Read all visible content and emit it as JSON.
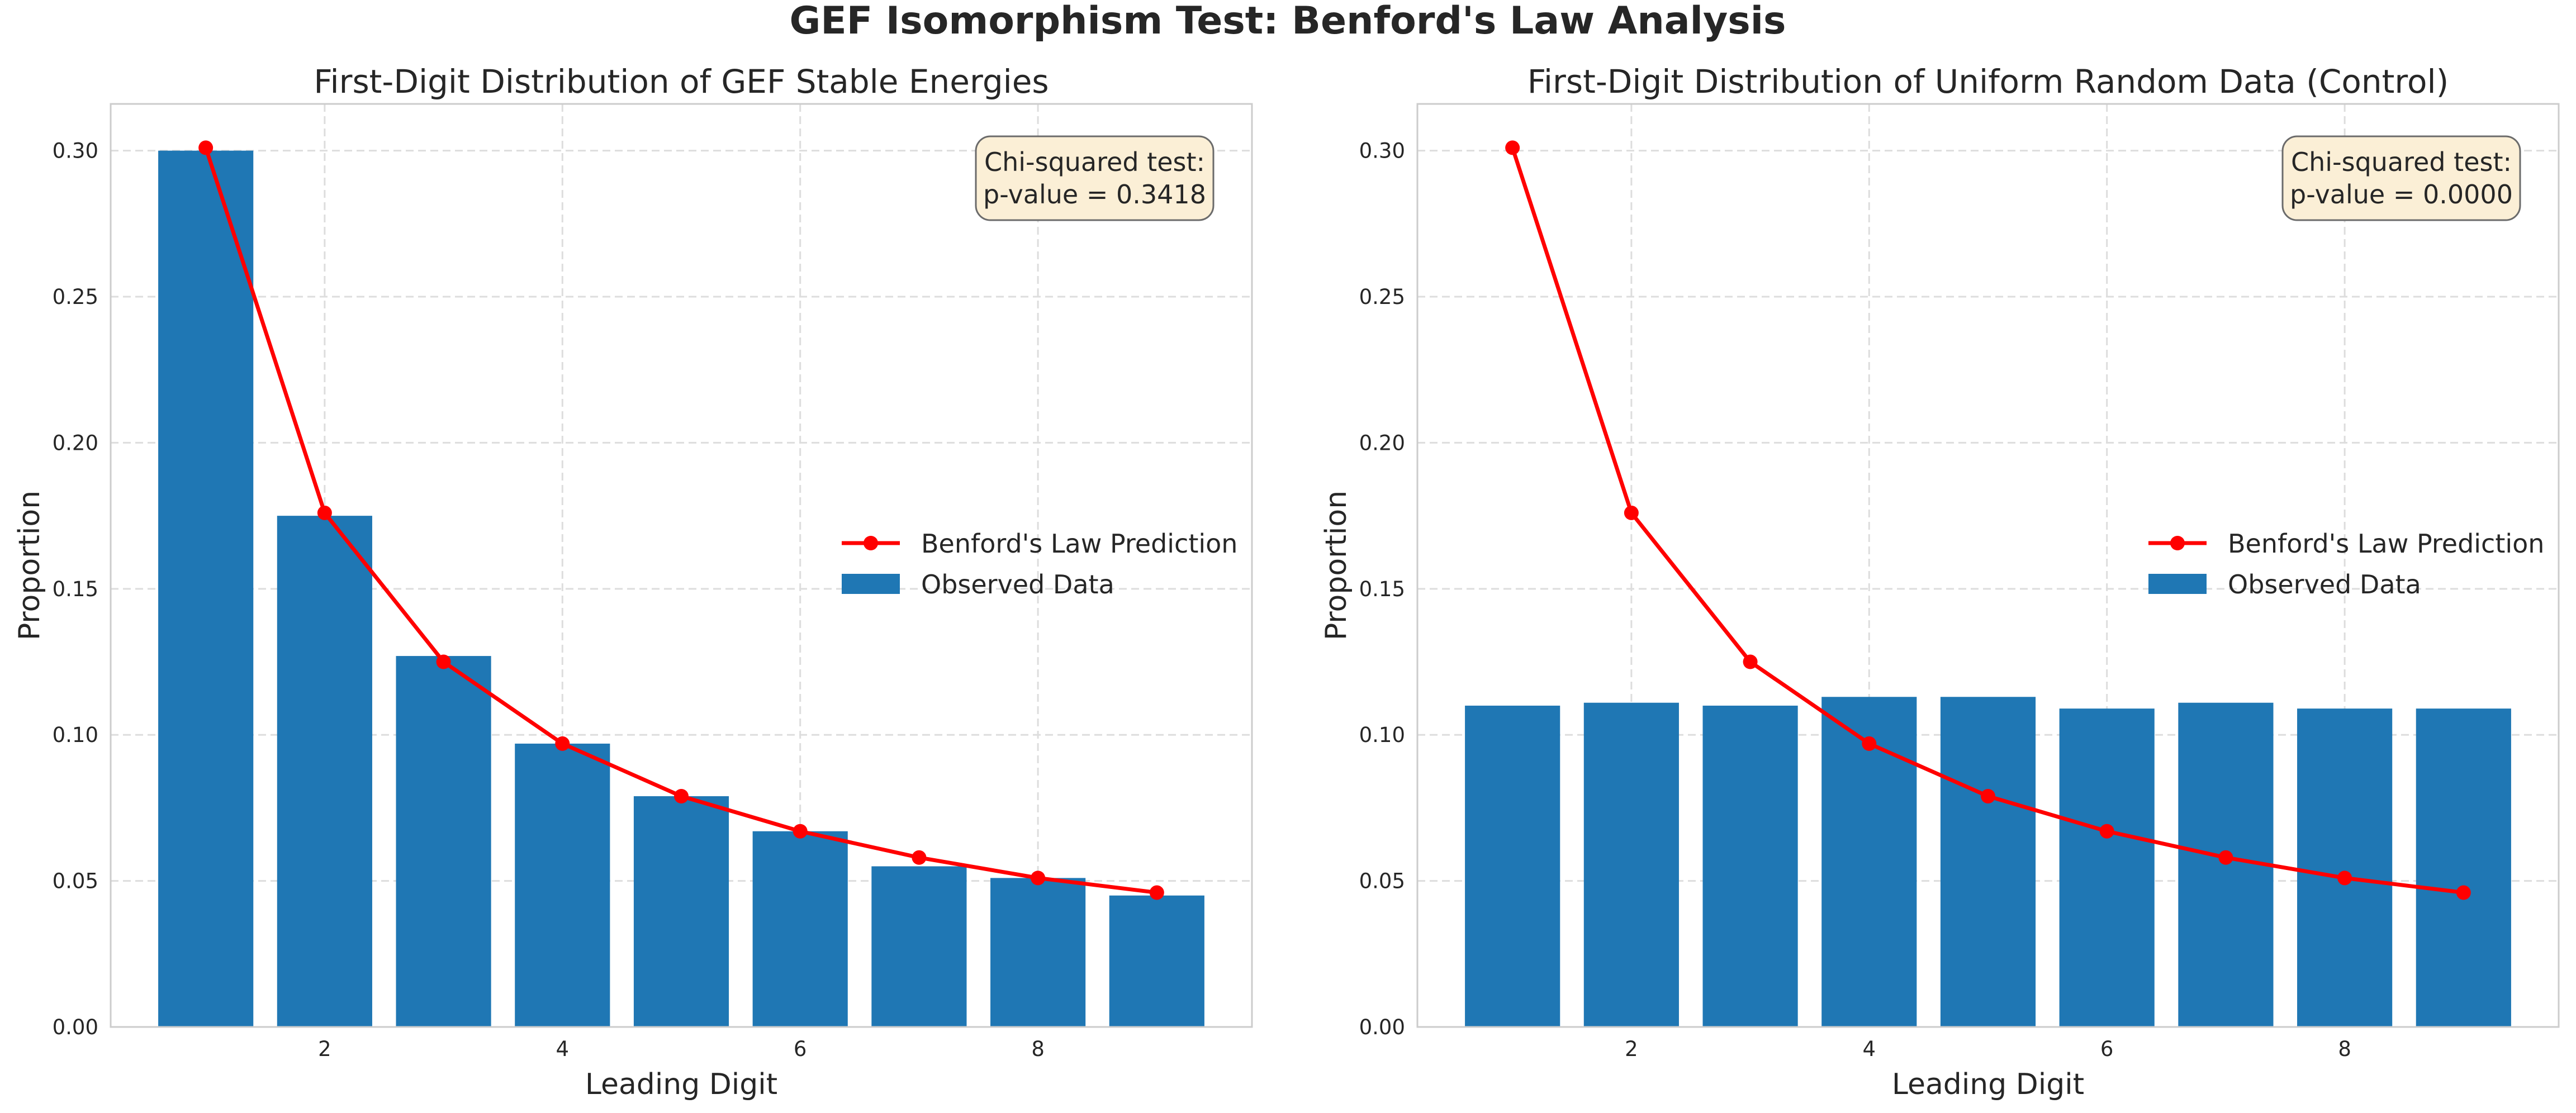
{
  "suptitle": "GEF Isomorphism Test: Benford's Law Analysis",
  "colors": {
    "bar": "#1f77b4",
    "line": "#ff0000",
    "grid": "#dddddd",
    "axes": "#cccccc",
    "text": "#262626",
    "box_face": "#fbefd6",
    "box_edge": "#6b6b6b"
  },
  "chart_data": [
    {
      "type": "bar",
      "title": "First-Digit Distribution of GEF Stable Energies",
      "xlabel": "Leading Digit",
      "ylabel": "Proportion",
      "x_ticks": [
        2,
        4,
        6,
        8
      ],
      "y_ticks": [
        "0.00",
        "0.05",
        "0.10",
        "0.15",
        "0.20",
        "0.25",
        "0.30"
      ],
      "xlim": [
        0.2,
        9.8
      ],
      "ylim": [
        0,
        0.316
      ],
      "grid": true,
      "legend_position": "center-right",
      "categories": [
        1,
        2,
        3,
        4,
        5,
        6,
        7,
        8,
        9
      ],
      "series": [
        {
          "name": "Benford's Law Prediction",
          "kind": "line",
          "values": [
            0.301,
            0.176,
            0.125,
            0.097,
            0.079,
            0.067,
            0.058,
            0.051,
            0.046
          ]
        },
        {
          "name": "Observed Data",
          "kind": "bar",
          "values": [
            0.3,
            0.175,
            0.127,
            0.097,
            0.079,
            0.067,
            0.055,
            0.051,
            0.045
          ]
        }
      ],
      "annotation": [
        "Chi-squared test:",
        "p-value = 0.3418"
      ]
    },
    {
      "type": "bar",
      "title": "First-Digit Distribution of Uniform Random Data (Control)",
      "xlabel": "Leading Digit",
      "ylabel": "Proportion",
      "x_ticks": [
        2,
        4,
        6,
        8
      ],
      "y_ticks": [
        "0.00",
        "0.05",
        "0.10",
        "0.15",
        "0.20",
        "0.25",
        "0.30"
      ],
      "xlim": [
        0.2,
        9.8
      ],
      "ylim": [
        0,
        0.316
      ],
      "grid": true,
      "legend_position": "center-right",
      "categories": [
        1,
        2,
        3,
        4,
        5,
        6,
        7,
        8,
        9
      ],
      "series": [
        {
          "name": "Benford's Law Prediction",
          "kind": "line",
          "values": [
            0.301,
            0.176,
            0.125,
            0.097,
            0.079,
            0.067,
            0.058,
            0.051,
            0.046
          ]
        },
        {
          "name": "Observed Data",
          "kind": "bar",
          "values": [
            0.11,
            0.111,
            0.11,
            0.113,
            0.113,
            0.109,
            0.111,
            0.109,
            0.109
          ]
        }
      ],
      "annotation": [
        "Chi-squared test:",
        "p-value = 0.0000"
      ]
    }
  ]
}
